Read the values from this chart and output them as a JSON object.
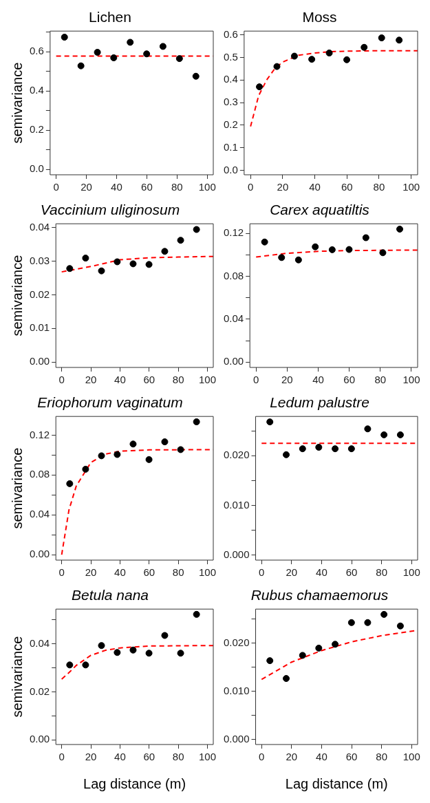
{
  "chart_data": [
    {
      "type": "scatter",
      "title": "Lichen",
      "ylabel": "semivariance",
      "xlim": [
        -4,
        104
      ],
      "xticks": [
        0,
        20,
        40,
        60,
        80,
        100
      ],
      "ylim": [
        -0.027,
        0.705
      ],
      "yticks": [
        {
          "value": 0,
          "label": "0.0"
        },
        {
          "value": 0.1,
          "label": null
        },
        0.2,
        {
          "value": 0.3,
          "label": null
        },
        0.4,
        {
          "value": 0.5,
          "label": null
        },
        0.6,
        {
          "value": 0.7,
          "label": null
        }
      ],
      "grid": false,
      "series": [
        {
          "type": "scatter",
          "color": "#000000",
          "marker": "circle",
          "x": [
            5.5,
            16.4,
            27.3,
            38.1,
            49,
            59.9,
            70.7,
            81.6,
            92.5
          ],
          "values": [
            0.674,
            0.528,
            0.597,
            0.569,
            0.648,
            0.589,
            0.627,
            0.565,
            0.475
          ]
        },
        {
          "type": "line",
          "color": "#ff0000",
          "line_style": "dashed",
          "x": [
            0,
            104
          ],
          "values": [
            0.578,
            0.578
          ]
        }
      ]
    },
    {
      "type": "scatter",
      "title": "Moss",
      "xlim": [
        -4,
        104
      ],
      "xticks": [
        0,
        20,
        40,
        60,
        80,
        100
      ],
      "ylim": [
        -0.02,
        0.617
      ],
      "yticks": [
        {
          "value": 0,
          "label": "0.0"
        },
        0.1,
        0.2,
        0.3,
        0.4,
        0.5,
        0.6
      ],
      "grid": false,
      "series": [
        {
          "type": "scatter",
          "color": "#000000",
          "marker": "circle",
          "x": [
            5.5,
            16.4,
            27.3,
            38.1,
            49,
            59.9,
            70.7,
            81.6,
            92.5
          ],
          "values": [
            0.37,
            0.46,
            0.506,
            0.492,
            0.52,
            0.49,
            0.545,
            0.587,
            0.577
          ]
        },
        {
          "type": "line",
          "color": "#ff0000",
          "line_style": "dashed",
          "x": [
            0,
            5,
            10,
            15,
            20,
            30,
            40,
            50,
            60,
            80,
            104
          ],
          "values": [
            0.194,
            0.33,
            0.4,
            0.45,
            0.48,
            0.51,
            0.52,
            0.526,
            0.528,
            0.53,
            0.53
          ]
        }
      ]
    },
    {
      "type": "scatter",
      "title": "Vaccinium uliginosum",
      "ylabel": "semivariance",
      "xlim": [
        -4,
        104
      ],
      "xticks": [
        0,
        20,
        40,
        60,
        80,
        100
      ],
      "ylim": [
        -0.0016,
        0.0411
      ],
      "yticks": [
        {
          "value": 0,
          "label": "0.00"
        },
        {
          "value": 0.01,
          "label": "0.01"
        },
        {
          "value": 0.02,
          "label": "0.02"
        },
        {
          "value": 0.03,
          "label": "0.03"
        },
        {
          "value": 0.04,
          "label": "0.04"
        }
      ],
      "grid": false,
      "series": [
        {
          "type": "scatter",
          "color": "#000000",
          "marker": "circle",
          "x": [
            5.5,
            16.4,
            27.3,
            38.1,
            49,
            59.9,
            70.7,
            81.6,
            92.5
          ],
          "values": [
            0.0278,
            0.0309,
            0.0271,
            0.0298,
            0.0292,
            0.029,
            0.0329,
            0.0362,
            0.0394
          ]
        },
        {
          "type": "line",
          "color": "#ff0000",
          "line_style": "dashed",
          "x": [
            0,
            10,
            20,
            40,
            60,
            80,
            104
          ],
          "values": [
            0.0268,
            0.0276,
            0.0284,
            0.0304,
            0.031,
            0.0312,
            0.0314
          ]
        }
      ]
    },
    {
      "type": "scatter",
      "title": "Carex aquatiltis",
      "xlim": [
        -4,
        104
      ],
      "xticks": [
        0,
        20,
        40,
        60,
        80,
        100
      ],
      "ylim": [
        -0.005,
        0.129
      ],
      "yticks": [
        {
          "value": 0,
          "label": "0.00"
        },
        {
          "value": 0.02,
          "label": null
        },
        0.04,
        {
          "value": 0.06,
          "label": null
        },
        0.08,
        {
          "value": 0.1,
          "label": null
        },
        0.12
      ],
      "grid": false,
      "series": [
        {
          "type": "scatter",
          "color": "#000000",
          "marker": "circle",
          "x": [
            5.5,
            16.4,
            27.3,
            38.1,
            49,
            59.9,
            70.7,
            81.6,
            92.5
          ],
          "values": [
            0.112,
            0.0975,
            0.0953,
            0.1075,
            0.1048,
            0.105,
            0.116,
            0.102,
            0.124
          ]
        },
        {
          "type": "line",
          "color": "#ff0000",
          "line_style": "dashed",
          "x": [
            0,
            20,
            40,
            60,
            104
          ],
          "values": [
            0.098,
            0.1015,
            0.1033,
            0.104,
            0.1045
          ]
        }
      ]
    },
    {
      "type": "scatter",
      "title": "Eriophorum vaginatum",
      "ylabel": "semivariance",
      "xlim": [
        -4,
        104
      ],
      "xticks": [
        0,
        20,
        40,
        60,
        80,
        100
      ],
      "ylim": [
        -0.0054,
        0.1388
      ],
      "yticks": [
        {
          "value": 0,
          "label": "0.00"
        },
        {
          "value": 0.02,
          "label": null
        },
        0.04,
        {
          "value": 0.06,
          "label": null
        },
        0.08,
        {
          "value": 0.1,
          "label": null
        },
        0.12
      ],
      "grid": false,
      "series": [
        {
          "type": "scatter",
          "color": "#000000",
          "marker": "circle",
          "x": [
            5.5,
            16.4,
            27.3,
            38.1,
            49,
            59.9,
            70.7,
            81.6,
            92.5
          ],
          "values": [
            0.0713,
            0.0858,
            0.0993,
            0.1006,
            0.1111,
            0.0955,
            0.1133,
            0.1055,
            0.1334
          ]
        },
        {
          "type": "line",
          "color": "#ff0000",
          "line_style": "dashed",
          "x": [
            0,
            5,
            10,
            20,
            30,
            40,
            60,
            104
          ],
          "values": [
            0,
            0.045,
            0.069,
            0.0925,
            0.101,
            0.1039,
            0.1052,
            0.1055
          ]
        }
      ]
    },
    {
      "type": "scatter",
      "title": "Ledum palustre",
      "xlim": [
        -4,
        104
      ],
      "xticks": [
        0,
        20,
        40,
        60,
        80,
        100
      ],
      "ylim": [
        -0.001,
        0.0279
      ],
      "yticks": [
        {
          "value": 0,
          "label": "0.000"
        },
        {
          "value": 0.005,
          "label": null
        },
        {
          "value": 0.01,
          "label": "0.010"
        },
        {
          "value": 0.015,
          "label": null
        },
        {
          "value": 0.02,
          "label": "0.020"
        },
        {
          "value": 0.025,
          "label": null
        }
      ],
      "grid": false,
      "series": [
        {
          "type": "scatter",
          "color": "#000000",
          "marker": "circle",
          "x": [
            5.5,
            16.4,
            27.3,
            38.1,
            49,
            59.9,
            70.7,
            81.6,
            92.5
          ],
          "values": [
            0.0268,
            0.0202,
            0.0214,
            0.0217,
            0.0214,
            0.0214,
            0.0254,
            0.0242,
            0.0242
          ]
        },
        {
          "type": "line",
          "color": "#ff0000",
          "line_style": "dashed",
          "x": [
            0,
            104
          ],
          "values": [
            0.0225,
            0.0225
          ]
        }
      ]
    },
    {
      "type": "scatter",
      "title": "Betula nana",
      "ylabel": "semivariance",
      "xlabel": "Lag distance (m)",
      "xlim": [
        -4,
        104
      ],
      "xticks": [
        0,
        20,
        40,
        60,
        80,
        100
      ],
      "ylim": [
        -0.002,
        0.0545
      ],
      "yticks": [
        {
          "value": 0,
          "label": "0.00"
        },
        {
          "value": 0.01,
          "label": null
        },
        {
          "value": 0.02,
          "label": "0.02"
        },
        {
          "value": 0.03,
          "label": null
        },
        {
          "value": 0.04,
          "label": "0.04"
        },
        {
          "value": 0.05,
          "label": null
        }
      ],
      "grid": false,
      "series": [
        {
          "type": "scatter",
          "color": "#000000",
          "marker": "circle",
          "x": [
            5.5,
            16.4,
            27.3,
            38.1,
            49,
            59.9,
            70.7,
            81.6,
            92.5
          ],
          "values": [
            0.0312,
            0.0312,
            0.0393,
            0.0364,
            0.0374,
            0.0361,
            0.0435,
            0.0361,
            0.0523
          ]
        },
        {
          "type": "line",
          "color": "#ff0000",
          "line_style": "dashed",
          "x": [
            0,
            5,
            10,
            20,
            30,
            40,
            60,
            104
          ],
          "values": [
            0.0253,
            0.028,
            0.031,
            0.0352,
            0.0373,
            0.0383,
            0.0391,
            0.0393
          ]
        }
      ]
    },
    {
      "type": "scatter",
      "title": "Rubus chamaemorus",
      "xlabel": "Lag distance (m)",
      "xlim": [
        -4,
        104
      ],
      "xticks": [
        0,
        20,
        40,
        60,
        80,
        100
      ],
      "ylim": [
        -0.001,
        0.0271
      ],
      "yticks": [
        {
          "value": 0,
          "label": "0.000"
        },
        {
          "value": 0.005,
          "label": null
        },
        {
          "value": 0.01,
          "label": "0.010"
        },
        {
          "value": 0.015,
          "label": null
        },
        {
          "value": 0.02,
          "label": "0.020"
        },
        {
          "value": 0.025,
          "label": null
        }
      ],
      "grid": false,
      "series": [
        {
          "type": "scatter",
          "color": "#000000",
          "marker": "circle",
          "x": [
            5.5,
            16.4,
            27.3,
            38.1,
            49,
            59.9,
            70.7,
            81.6,
            92.5
          ],
          "values": [
            0.0164,
            0.0127,
            0.0175,
            0.019,
            0.0198,
            0.0243,
            0.0243,
            0.026,
            0.0236
          ]
        },
        {
          "type": "line",
          "color": "#ff0000",
          "line_style": "dashed",
          "x": [
            0,
            20,
            40,
            60,
            80,
            104
          ],
          "values": [
            0.0125,
            0.0161,
            0.0185,
            0.0203,
            0.0216,
            0.0227
          ]
        }
      ]
    }
  ]
}
